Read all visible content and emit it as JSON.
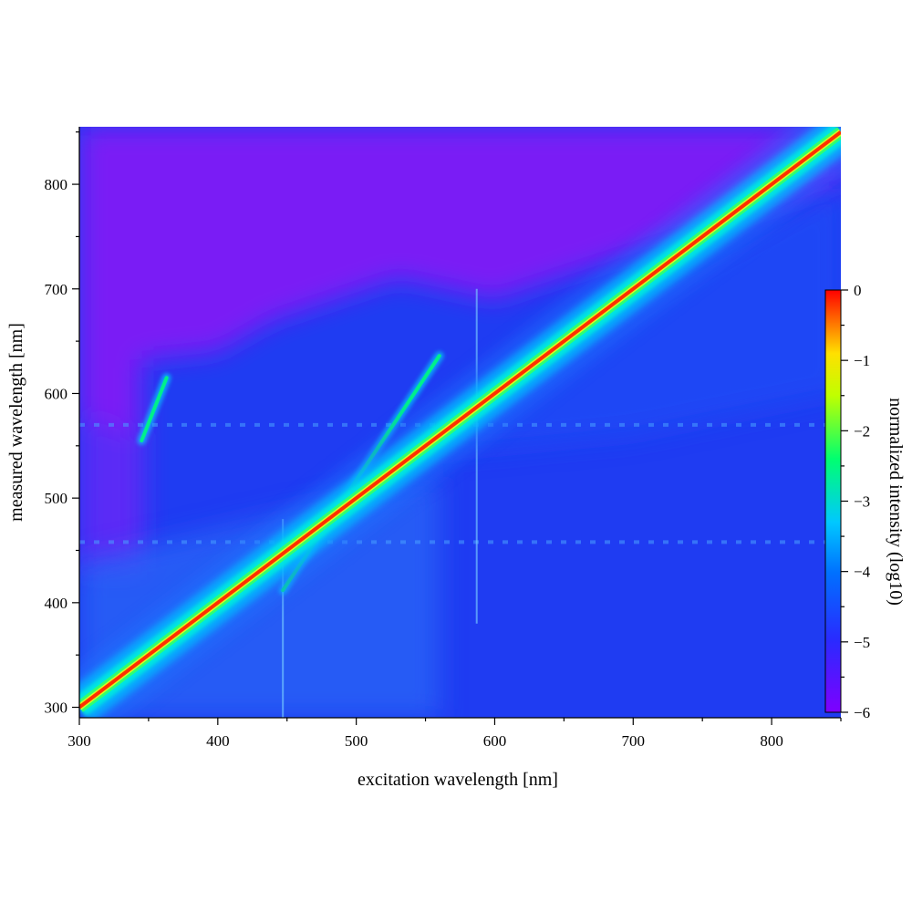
{
  "chart_data": {
    "type": "heatmap",
    "xlabel": "excitation wavelength [nm]",
    "ylabel": "measured wavelength [nm]",
    "xlim": [
      300,
      850
    ],
    "ylim": [
      290,
      855
    ],
    "x_ticks": [
      300,
      400,
      500,
      600,
      700,
      800
    ],
    "y_ticks": [
      300,
      400,
      500,
      600,
      700,
      800
    ],
    "colorbar": {
      "label": "normalized intensity (log10)",
      "range": [
        -6,
        0
      ],
      "ticks": [
        0,
        -1,
        -2,
        -3,
        -4,
        -5,
        -6
      ],
      "colormap": [
        "#7f00ff",
        "#3030ff",
        "#0070ff",
        "#00c8ff",
        "#00ff80",
        "#c0ff00",
        "#ffff00",
        "#ff8000",
        "#ff0000"
      ]
    },
    "background": {
      "level": -5.1,
      "low_region_upper_left": {
        "x_range": [
          300,
          850
        ],
        "level": -5.6,
        "color": "#7a1ef5"
      }
    },
    "features": [
      {
        "name": "elastic scatter diagonal",
        "x": [
          300,
          850
        ],
        "y": [
          300,
          850
        ],
        "level": 0
      },
      {
        "name": "second-order line",
        "x": [
          447,
          560
        ],
        "y": [
          412,
          636
        ],
        "level": -3.3
      },
      {
        "name": "short line",
        "x": [
          345,
          363
        ],
        "y": [
          555,
          615
        ],
        "level": -3.4
      },
      {
        "name": "vertical line",
        "x": 447,
        "y_range": [
          290,
          480
        ],
        "level": -4.3
      },
      {
        "name": "vertical line",
        "x": 587,
        "y_range": [
          380,
          700
        ],
        "level": -4.4
      },
      {
        "name": "horizontal band",
        "y": 458,
        "x_range": [
          300,
          850
        ],
        "level": -4.3
      },
      {
        "name": "horizontal band",
        "y": 570,
        "x_range": [
          300,
          850
        ],
        "level": -4.5
      }
    ]
  }
}
